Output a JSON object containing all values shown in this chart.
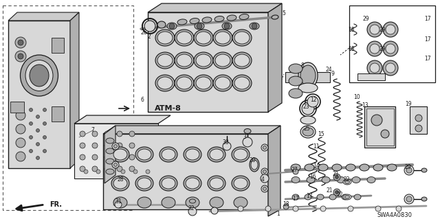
{
  "fig_width": 6.4,
  "fig_height": 3.19,
  "dpi": 100,
  "bg_color": "#ffffff",
  "diagram_code": "SWA4A0830",
  "section_label": "ATM-8",
  "gray_light": "#d8d8d8",
  "gray_mid": "#b0b0b0",
  "gray_dark": "#888888",
  "black": "#1a1a1a"
}
